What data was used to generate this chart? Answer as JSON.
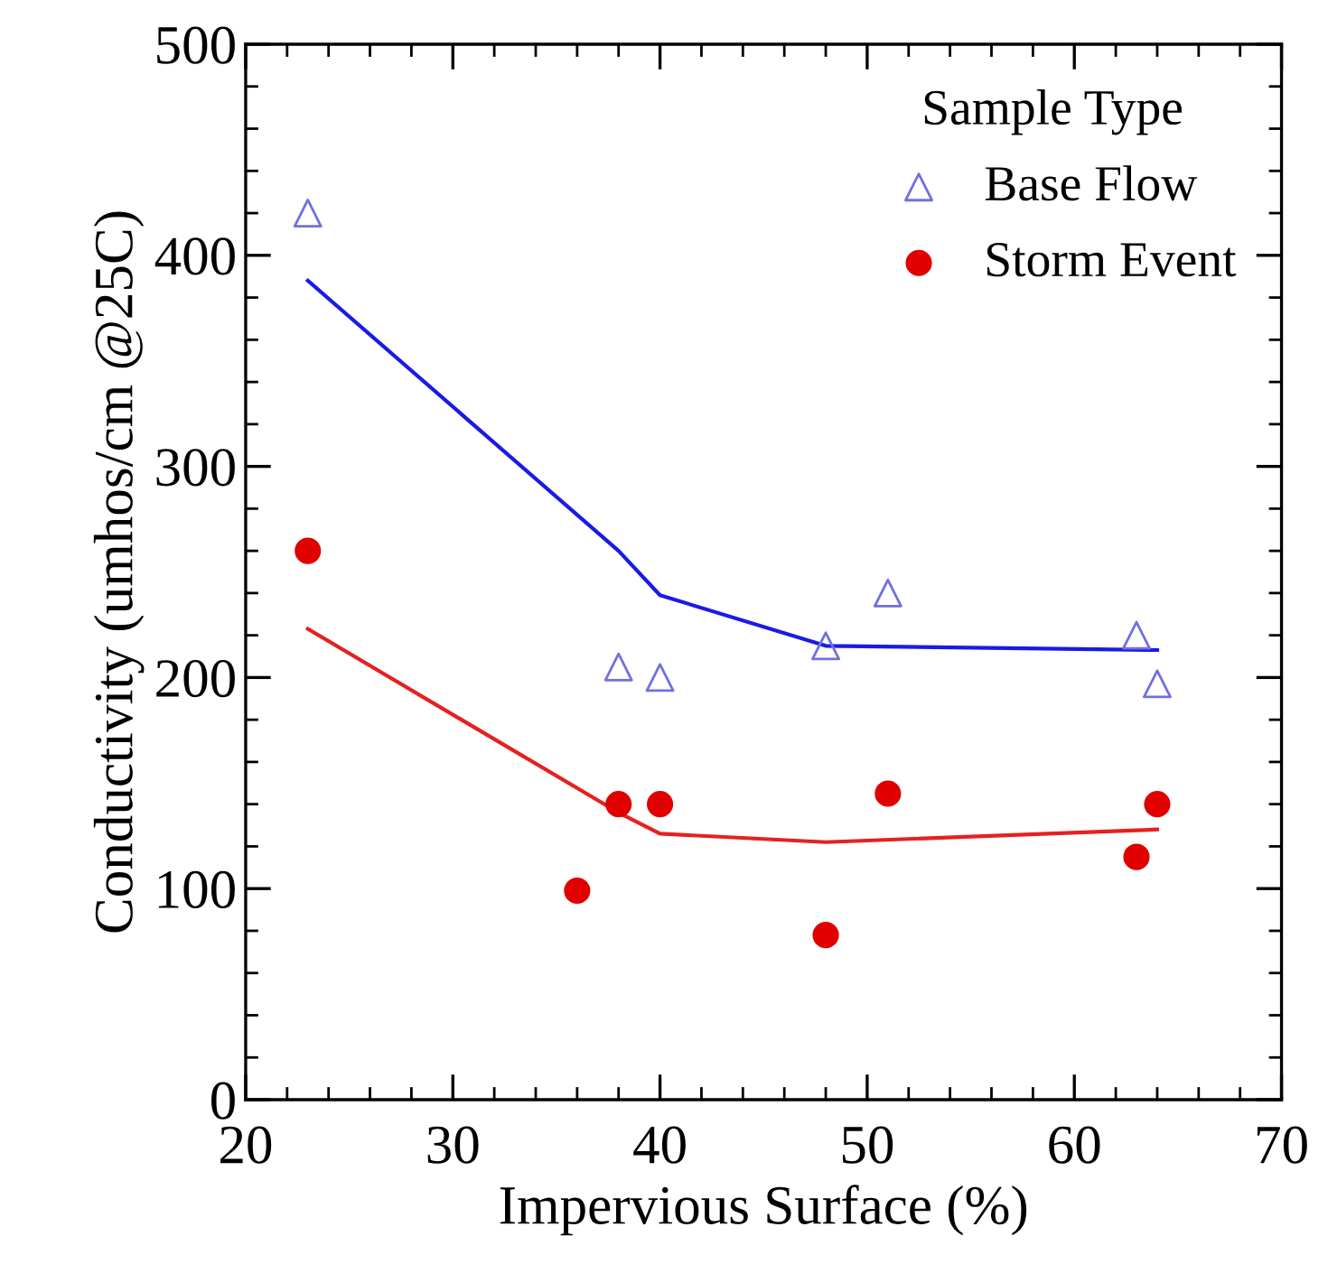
{
  "chart_data": {
    "type": "scatter",
    "xlabel": "Impervious Surface (%)",
    "ylabel": "Conductivity (umhos/cm @25C)",
    "legend_title": "Sample Type",
    "legend": "top right",
    "grid": false,
    "xlim": [
      20,
      70
    ],
    "xticks": [
      20,
      30,
      40,
      50,
      60,
      70
    ],
    "ylim": [
      0,
      500
    ],
    "yticks": [
      0,
      100,
      200,
      300,
      400,
      500
    ],
    "series": [
      {
        "name": "Base Flow",
        "marker": "triangle",
        "color": "#7070e0",
        "x": [
          23,
          38,
          40,
          48,
          51,
          63,
          64
        ],
        "values": [
          420,
          205,
          200,
          215,
          240,
          220,
          197
        ]
      },
      {
        "name": "Storm Event",
        "marker": "circle",
        "color": "#e00000",
        "x": [
          23,
          36,
          38,
          40,
          48,
          51,
          63,
          64
        ],
        "values": [
          260,
          99,
          140,
          140,
          78,
          145,
          115,
          140
        ]
      },
      {
        "type": "line",
        "color": "#1a1ae6",
        "x": [
          23,
          38,
          40,
          48,
          64
        ],
        "values": [
          388,
          260,
          239,
          215,
          213
        ]
      },
      {
        "type": "line",
        "color": "#e62020",
        "x": [
          23,
          38,
          40,
          48,
          64
        ],
        "values": [
          223,
          136,
          126,
          122,
          128
        ]
      }
    ]
  }
}
